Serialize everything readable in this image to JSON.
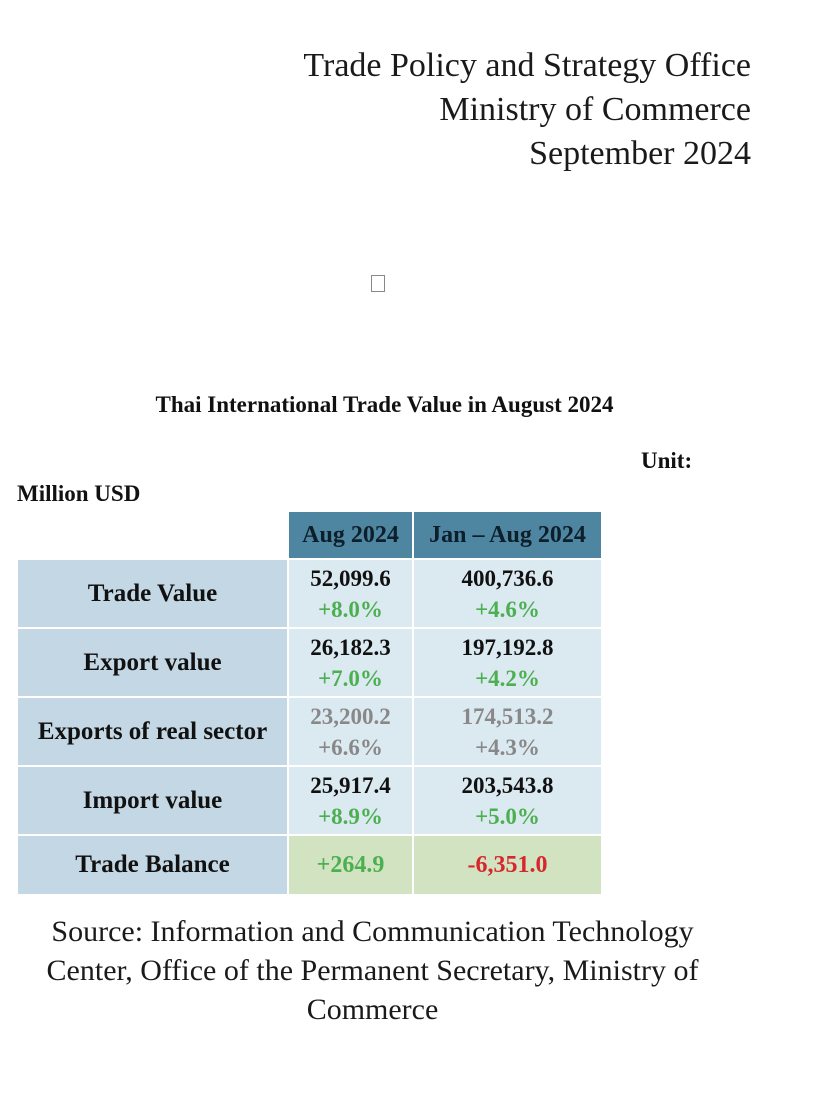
{
  "header": {
    "line1": "Trade Policy and Strategy Office",
    "line2": "Ministry of Commerce",
    "line3": "September 2024"
  },
  "table": {
    "title": "Thai International Trade Value in August 2024",
    "unit_label": "Unit:",
    "unit_value": "Million USD",
    "columns": [
      "Aug 2024",
      "Jan – Aug 2024"
    ],
    "rows": [
      {
        "label": "Trade Value",
        "aug": {
          "value": "52,099.6",
          "change": "+8.0%"
        },
        "ytd": {
          "value": "400,736.6",
          "change": "+4.6%"
        }
      },
      {
        "label": "Export value",
        "aug": {
          "value": "26,182.3",
          "change": "+7.0%"
        },
        "ytd": {
          "value": "197,192.8",
          "change": "+4.2%"
        }
      },
      {
        "label": "Exports of real sector",
        "aug": {
          "value": "23,200.2",
          "change": "+6.6%"
        },
        "ytd": {
          "value": "174,513.2",
          "change": "+4.3%"
        }
      },
      {
        "label": "Import value",
        "aug": {
          "value": "25,917.4",
          "change": "+8.9%"
        },
        "ytd": {
          "value": "203,543.8",
          "change": "+5.0%"
        }
      }
    ],
    "balance": {
      "label": "Trade Balance",
      "aug": "+264.9",
      "ytd": "-6,351.0"
    }
  },
  "source": {
    "line1": "Source: Information and Communication Technology",
    "line2": "Center, Office of the Permanent Secretary, Ministry of",
    "line3": "Commerce"
  },
  "colors": {
    "header_cell": "#4e86a2",
    "label_cell": "#c3d8e4",
    "data_cell": "#dbe9f1",
    "balance_cell": "#d2e3c2",
    "positive": "#4caf50",
    "negative": "#d6282c",
    "muted": "#888888"
  }
}
